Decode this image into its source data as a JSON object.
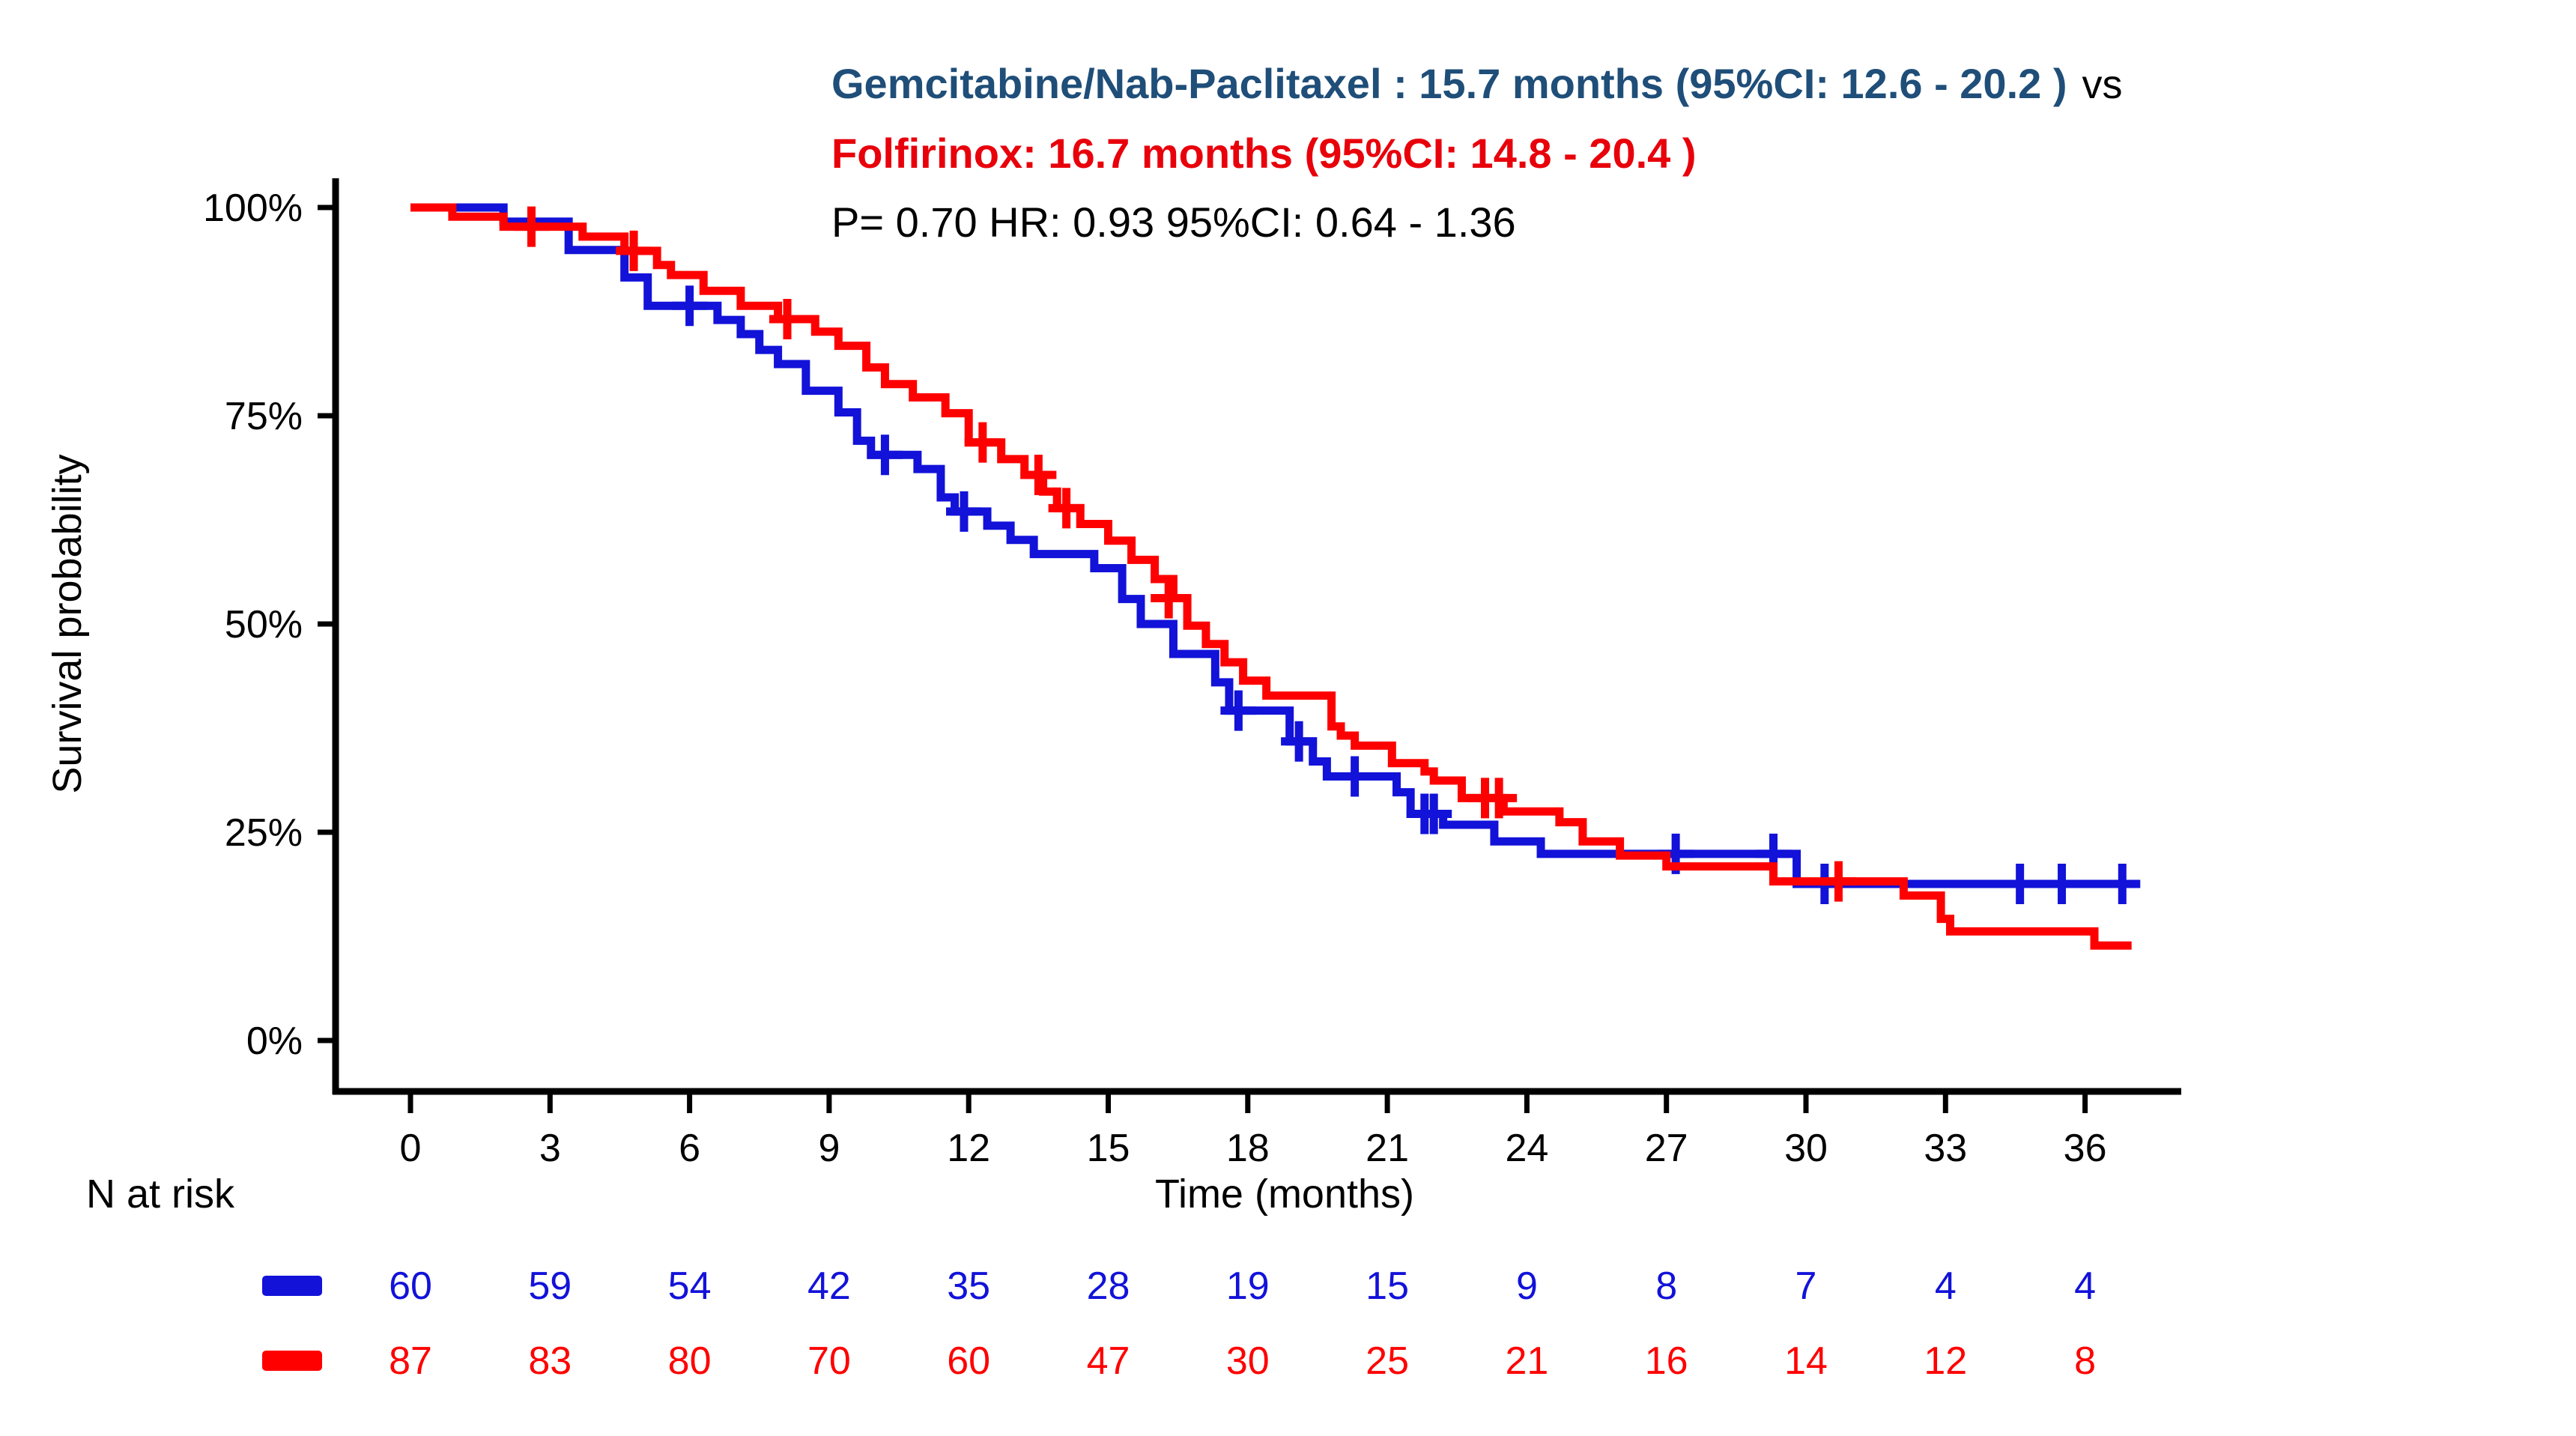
{
  "page": {
    "background": "#ffffff"
  },
  "colors": {
    "title_blue": "#1F4E79",
    "title_red": "#E8000B",
    "series_blue": "#1212D9",
    "series_red": "#FF0000",
    "axis_black": "#000000"
  },
  "annotation": {
    "line1_blue": "Gemcitabine/Nab-Paclitaxel : 15.7 months (95%CI: 12.6 - 20.2 )",
    "line1_black": "vs",
    "line2_red": "Folfirinox: 16.7 months (95%CI: 14.8 - 20.4 )",
    "line3_stats": "P= 0.70 HR: 0.93 95%CI: 0.64 - 1.36"
  },
  "chart_data": {
    "type": "line",
    "subtype": "kaplan-meier-step",
    "title": "Gemcitabine/Nab-Paclitaxel : 15.7 months (95%CI: 12.6 - 20.2 ) vs Folfirinox: 16.7 months (95%CI: 14.8 - 20.4 )",
    "stats_annotation": {
      "p_value": "0.70",
      "hazard_ratio": "0.93",
      "hr_95ci": "0.64 - 1.36"
    },
    "xlabel": "Time (months)",
    "ylabel": "Survival probability",
    "xlim": [
      0,
      38
    ],
    "ylim": [
      0,
      100
    ],
    "grid": false,
    "legend_position": "none",
    "x_ticks": [
      0,
      3,
      6,
      9,
      12,
      15,
      18,
      21,
      24,
      27,
      30,
      33,
      36
    ],
    "y_ticks": [
      {
        "label": "100%",
        "value": 100
      },
      {
        "label": "75%",
        "value": 75
      },
      {
        "label": "50%",
        "value": 50
      },
      {
        "label": "25%",
        "value": 25
      },
      {
        "label": "0%",
        "value": 0
      }
    ],
    "series": [
      {
        "key": "gemnab",
        "name": "Gemcitabine/Nab-Paclitaxel",
        "color": "#1212D9",
        "median_months": "15.7",
        "median_95ci": "12.6 - 20.2",
        "end_time": 37.1,
        "steps": [
          [
            0,
            100
          ],
          [
            2.0,
            98.3
          ],
          [
            3.4,
            94.9
          ],
          [
            4.6,
            91.6
          ],
          [
            5.1,
            88.2
          ],
          [
            6.6,
            86.5
          ],
          [
            7.1,
            84.8
          ],
          [
            7.5,
            82.9
          ],
          [
            7.9,
            81.2
          ],
          [
            8.5,
            78.0
          ],
          [
            9.2,
            75.4
          ],
          [
            9.6,
            72.0
          ],
          [
            9.9,
            70.3
          ],
          [
            10.9,
            68.6
          ],
          [
            11.4,
            65.2
          ],
          [
            11.7,
            63.5
          ],
          [
            12.4,
            61.8
          ],
          [
            12.9,
            60.1
          ],
          [
            13.4,
            58.4
          ],
          [
            14.7,
            56.7
          ],
          [
            15.3,
            53.0
          ],
          [
            15.7,
            50.0
          ],
          [
            16.4,
            46.4
          ],
          [
            17.3,
            43.0
          ],
          [
            17.6,
            39.6
          ],
          [
            18.9,
            35.9
          ],
          [
            19.4,
            33.5
          ],
          [
            19.7,
            31.7
          ],
          [
            21.2,
            29.8
          ],
          [
            21.5,
            27.2
          ],
          [
            22.2,
            25.9
          ],
          [
            23.3,
            23.9
          ],
          [
            24.3,
            22.4
          ],
          [
            29.8,
            18.8
          ]
        ],
        "censors": [
          [
            6.0,
            88.2
          ],
          [
            10.2,
            70.3
          ],
          [
            11.9,
            63.5
          ],
          [
            17.8,
            39.6
          ],
          [
            19.1,
            35.9
          ],
          [
            20.3,
            31.7
          ],
          [
            21.8,
            27.2
          ],
          [
            22.0,
            27.2
          ],
          [
            27.2,
            22.4
          ],
          [
            29.3,
            22.4
          ],
          [
            30.4,
            18.8
          ],
          [
            34.6,
            18.8
          ],
          [
            35.5,
            18.8
          ],
          [
            36.8,
            18.8
          ]
        ]
      },
      {
        "key": "folfirinox",
        "name": "Folfirinox",
        "color": "#FF0000",
        "median_months": "16.7",
        "median_95ci": "14.8 - 20.4",
        "end_time": 37.0,
        "steps": [
          [
            0,
            100
          ],
          [
            0.9,
            98.9
          ],
          [
            2.0,
            97.7
          ],
          [
            3.7,
            96.5
          ],
          [
            4.6,
            94.8
          ],
          [
            5.3,
            93.1
          ],
          [
            5.6,
            91.9
          ],
          [
            6.3,
            90.0
          ],
          [
            7.1,
            88.2
          ],
          [
            7.9,
            86.6
          ],
          [
            8.7,
            85.1
          ],
          [
            9.2,
            83.4
          ],
          [
            9.8,
            80.8
          ],
          [
            10.2,
            78.8
          ],
          [
            10.8,
            77.2
          ],
          [
            11.5,
            75.3
          ],
          [
            12.0,
            71.8
          ],
          [
            12.7,
            69.8
          ],
          [
            13.2,
            67.9
          ],
          [
            13.6,
            65.9
          ],
          [
            13.9,
            63.9
          ],
          [
            14.4,
            62.0
          ],
          [
            15.0,
            60.0
          ],
          [
            15.5,
            57.7
          ],
          [
            16.0,
            55.4
          ],
          [
            16.4,
            53.1
          ],
          [
            16.7,
            49.8
          ],
          [
            17.1,
            47.6
          ],
          [
            17.5,
            45.4
          ],
          [
            17.9,
            43.2
          ],
          [
            18.4,
            41.4
          ],
          [
            19.8,
            37.7
          ],
          [
            20.0,
            36.6
          ],
          [
            20.3,
            35.4
          ],
          [
            21.1,
            33.3
          ],
          [
            21.8,
            32.3
          ],
          [
            22.0,
            31.2
          ],
          [
            22.6,
            29.1
          ],
          [
            23.5,
            27.5
          ],
          [
            24.7,
            26.2
          ],
          [
            25.2,
            23.9
          ],
          [
            26.0,
            22.2
          ],
          [
            27.0,
            20.9
          ],
          [
            29.3,
            19.1
          ],
          [
            32.1,
            17.4
          ],
          [
            32.9,
            14.6
          ],
          [
            33.1,
            13.1
          ],
          [
            36.2,
            11.4
          ]
        ],
        "censors": [
          [
            2.6,
            97.7
          ],
          [
            4.8,
            94.8
          ],
          [
            8.1,
            86.6
          ],
          [
            12.3,
            71.8
          ],
          [
            13.5,
            67.9
          ],
          [
            14.1,
            63.9
          ],
          [
            16.3,
            53.1
          ],
          [
            23.1,
            29.1
          ],
          [
            23.4,
            29.1
          ],
          [
            30.7,
            19.1
          ]
        ]
      }
    ]
  },
  "risk_table": {
    "label": "N at risk",
    "times": [
      0,
      3,
      6,
      9,
      12,
      15,
      18,
      21,
      24,
      27,
      30,
      33,
      36
    ],
    "rows": [
      {
        "name": "Gemcitabine/Nab-Paclitaxel",
        "color": "#1212D9",
        "counts": [
          "60",
          "59",
          "54",
          "42",
          "35",
          "28",
          "19",
          "15",
          "9",
          "8",
          "7",
          "4",
          "4"
        ]
      },
      {
        "name": "Folfirinox",
        "color": "#FF0000",
        "counts": [
          "87",
          "83",
          "80",
          "70",
          "60",
          "47",
          "30",
          "25",
          "21",
          "16",
          "14",
          "12",
          "8"
        ]
      }
    ]
  }
}
